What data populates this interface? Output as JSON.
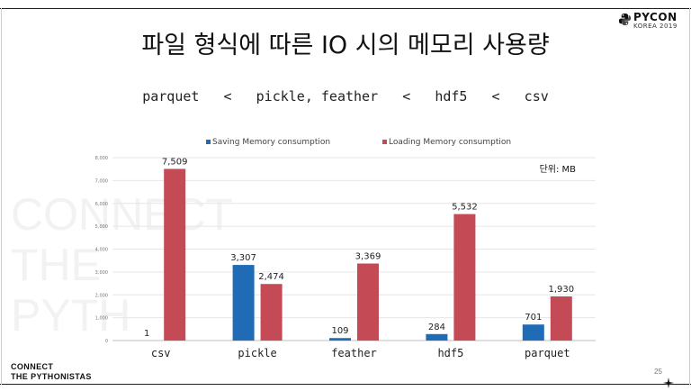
{
  "slide": {
    "title": "파일 형식에 따른 IO 시의 메모리 사용량",
    "subtitle": "parquet   <   pickle, feather   <   hdf5   <   csv",
    "logo_text": "PYCON",
    "logo_sub": "KOREA 2019",
    "footer_line1": "CONNECT",
    "footer_line2": "THE PYTHONISTAS",
    "page_number": "25",
    "watermark_lines": [
      "CONNECT",
      "THE",
      "PYTH"
    ]
  },
  "chart_data": {
    "type": "bar",
    "categories": [
      "csv",
      "pickle",
      "feather",
      "hdf5",
      "parquet"
    ],
    "series": [
      {
        "name": "Saving Memory consumption",
        "color": "#1f6bb5",
        "values": [
          1,
          3307,
          109,
          284,
          701
        ],
        "labels": [
          "1",
          "3,307",
          "109",
          "284",
          "701"
        ]
      },
      {
        "name": "Loading Memory consumption",
        "color": "#c44a56",
        "values": [
          7509,
          2474,
          3369,
          5532,
          1930
        ],
        "labels": [
          "7,509",
          "2,474",
          "3,369",
          "5,532",
          "1,930"
        ]
      }
    ],
    "unit_label": "단위: MB",
    "ylim": [
      0,
      8000
    ],
    "yticks": [
      0,
      1000,
      2000,
      3000,
      4000,
      5000,
      6000,
      7000,
      8000
    ],
    "ytick_labels": [
      "0",
      "1,000",
      "2,000",
      "3,000",
      "4,000",
      "5,000",
      "6,000",
      "7,000",
      "8,000"
    ],
    "grid": true,
    "legend_position": "top"
  }
}
